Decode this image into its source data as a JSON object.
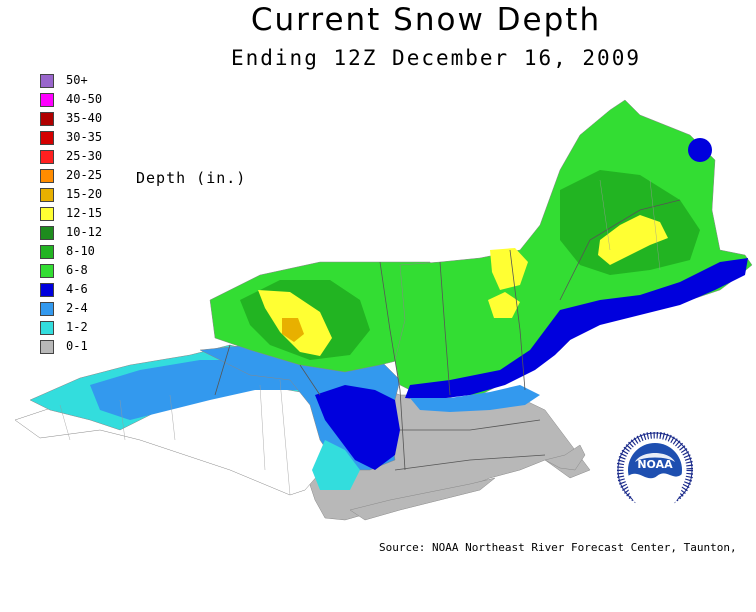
{
  "title": "Current Snow Depth",
  "subtitle": "Ending 12Z December 16, 2009",
  "legend_title": "Depth (in.)",
  "legend": [
    {
      "label": "50+",
      "color": "#9966cc"
    },
    {
      "label": "40-50",
      "color": "#ff00ff"
    },
    {
      "label": "35-40",
      "color": "#b00000"
    },
    {
      "label": "30-35",
      "color": "#d40000"
    },
    {
      "label": "25-30",
      "color": "#ff2020"
    },
    {
      "label": "20-25",
      "color": "#ff8c00"
    },
    {
      "label": "15-20",
      "color": "#e8b000"
    },
    {
      "label": "12-15",
      "color": "#ffff33"
    },
    {
      "label": "10-12",
      "color": "#1e8c1e"
    },
    {
      "label": "8-10",
      "color": "#22b422"
    },
    {
      "label": "6-8",
      "color": "#33dd33"
    },
    {
      "label": "4-6",
      "color": "#0000dd"
    },
    {
      "label": "2-4",
      "color": "#3399ee"
    },
    {
      "label": "1-2",
      "color": "#33dddd"
    },
    {
      "label": "0-1",
      "color": "#b8b8b8"
    }
  ],
  "logo_text": "NOAA",
  "source": "Source: NOAA Northeast River Forecast Center, Taunton,"
}
